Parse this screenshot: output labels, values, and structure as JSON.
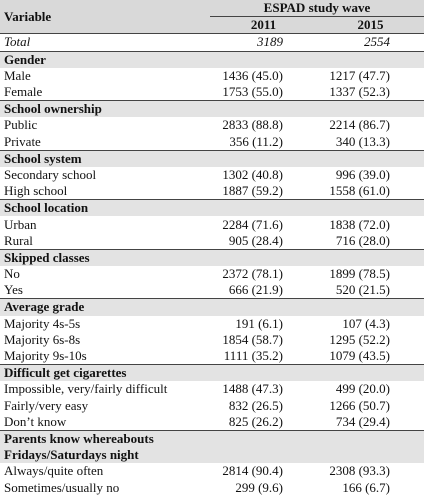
{
  "header": {
    "variable": "Variable",
    "wave": "ESPAD study wave",
    "years": [
      "2011",
      "2015"
    ]
  },
  "total": {
    "label": "Total",
    "values": [
      "3189",
      "2554"
    ]
  },
  "sections": [
    {
      "title": "Gender",
      "rows": [
        [
          "Male",
          "1436 (45.0)",
          "1217 (47.7)"
        ],
        [
          "Female",
          "1753 (55.0)",
          "1337 (52.3)"
        ]
      ]
    },
    {
      "title": "School ownership",
      "rows": [
        [
          "Public",
          "2833 (88.8)",
          "2214 (86.7)"
        ],
        [
          "Private",
          "356 (11.2)",
          "340 (13.3)"
        ]
      ]
    },
    {
      "title": "School system",
      "rows": [
        [
          "Secondary school",
          "1302 (40.8)",
          "996 (39.0)"
        ],
        [
          "High school",
          "1887 (59.2)",
          "1558 (61.0)"
        ]
      ]
    },
    {
      "title": "School location",
      "rows": [
        [
          "Urban",
          "2284 (71.6)",
          "1838 (72.0)"
        ],
        [
          "Rural",
          "905 (28.4)",
          "716 (28.0)"
        ]
      ]
    },
    {
      "title": "Skipped classes",
      "rows": [
        [
          "No",
          "2372 (78.1)",
          "1899 (78.5)"
        ],
        [
          "Yes",
          "666 (21.9)",
          "520 (21.5)"
        ]
      ]
    },
    {
      "title": "Average grade",
      "rows": [
        [
          "Majority 4s-5s",
          "191 (6.1)",
          "107 (4.3)"
        ],
        [
          "Majority 6s-8s",
          "1854 (58.7)",
          "1295 (52.2)"
        ],
        [
          "Majority 9s-10s",
          "1111 (35.2)",
          "1079 (43.5)"
        ]
      ]
    },
    {
      "title": "Difficult get cigarettes",
      "rows": [
        [
          "Impossible, very/fairly difficult",
          "1488 (47.3)",
          "499 (20.0)"
        ],
        [
          "Fairly/very easy",
          "832 (26.5)",
          "1266 (50.7)"
        ],
        [
          "Don’t know",
          "825 (26.2)",
          "734 (29.4)"
        ]
      ]
    },
    {
      "title": "Parents know whereabouts",
      "subtitle": "Fridays/Saturdays night",
      "rows": [
        [
          "Always/quite often",
          "2814 (90.4)",
          "2308 (93.3)"
        ],
        [
          "Sometimes/usually no",
          "299 (9.6)",
          "166 (6.7)"
        ]
      ]
    }
  ]
}
